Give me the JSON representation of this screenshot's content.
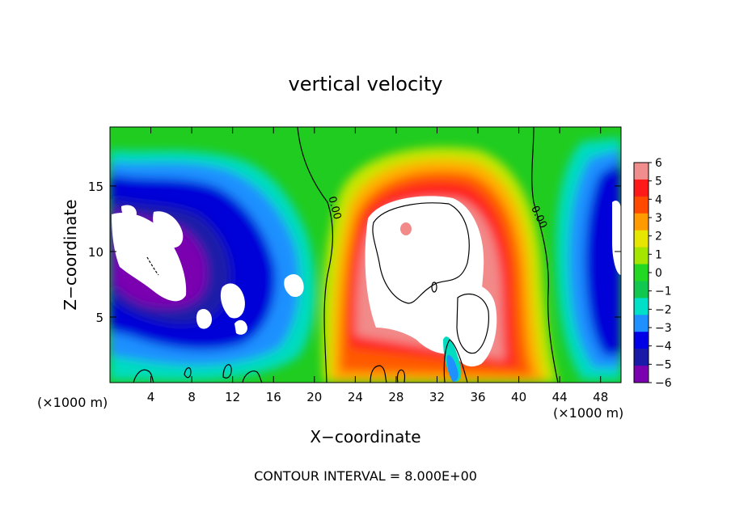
{
  "chart_data": {
    "type": "heatmap",
    "title": "vertical velocity",
    "xlabel": "X−coordinate",
    "ylabel": "Z−coordinate",
    "x_unit_left": "(×1000 m)",
    "x_unit_right": "(×1000 m)",
    "footer": "CONTOUR INTERVAL = 8.000E+00",
    "xlim": [
      0,
      50
    ],
    "ylim": [
      0,
      19.5
    ],
    "x_ticks": [
      4,
      8,
      12,
      16,
      20,
      24,
      28,
      32,
      36,
      40,
      44,
      48
    ],
    "y_ticks": [
      5,
      10,
      15
    ],
    "contour_labels": [
      "0.00",
      "0.00"
    ],
    "colorbar": {
      "levels": [
        6,
        5,
        4,
        3,
        2,
        1,
        0,
        -1,
        -2,
        -3,
        -4,
        -5,
        -6
      ],
      "level_labels": [
        "6",
        "5",
        "4",
        "3",
        "2",
        "1",
        "0",
        "−1",
        "−2",
        "−3",
        "−4",
        "−5",
        "−6"
      ],
      "colors": [
        "#f08e8e",
        "#ff1a1a",
        "#ff4a00",
        "#ff9a00",
        "#e6e600",
        "#a5e600",
        "#22d822",
        "#10c850",
        "#00e0c8",
        "#1e90ff",
        "#0000e6",
        "#1a1aa8",
        "#7a00b0"
      ]
    },
    "field_colors": {
      "saturated_high": "#ffffff",
      "saturated_low": "#ffffff",
      "background": "#1fcc1f"
    }
  }
}
